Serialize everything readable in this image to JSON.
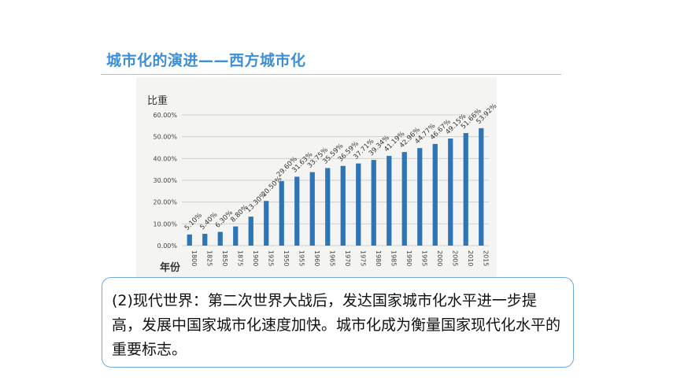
{
  "slide": {
    "title": "城市化的演进——西方城市化",
    "body_text": "(2)现代世界：第二次世界大战后，发达国家城市化水平进一步提高，发展中国家城市化速度加快。城市化成为衡量国家现代化水平的重要标志。"
  },
  "chart_data": {
    "type": "bar",
    "title": "",
    "ylabel": "比重",
    "xlabel": "年份",
    "ylim": [
      0,
      60
    ],
    "yticks": [
      "0.00%",
      "10.00%",
      "20.00%",
      "30.00%",
      "40.00%",
      "50.00%",
      "60.00%"
    ],
    "grid": true,
    "bar_color": "#2e75b6",
    "categories": [
      "1800",
      "1825",
      "1850",
      "1875",
      "1900",
      "1925",
      "1950",
      "1955",
      "1960",
      "1965",
      "1970",
      "1975",
      "1980",
      "1985",
      "1990",
      "1995",
      "2000",
      "2005",
      "2010",
      "2015"
    ],
    "values": [
      5.1,
      5.4,
      6.3,
      8.8,
      13.3,
      20.5,
      29.6,
      31.63,
      33.75,
      35.59,
      36.59,
      37.71,
      39.34,
      41.19,
      42.96,
      44.77,
      46.67,
      49.15,
      51.66,
      53.92
    ],
    "data_labels": [
      "5.10%",
      "5.40%",
      "6.30%",
      "8.80%",
      "13.30%",
      "20.50%",
      "29.60%",
      "31.63%",
      "33.75%",
      "35.59%",
      "36.59%",
      "37.71%",
      "39.34%",
      "41.19%",
      "42.96%",
      "44.77%",
      "46.67%",
      "49.15%",
      "51.66%",
      "53.92%"
    ]
  }
}
